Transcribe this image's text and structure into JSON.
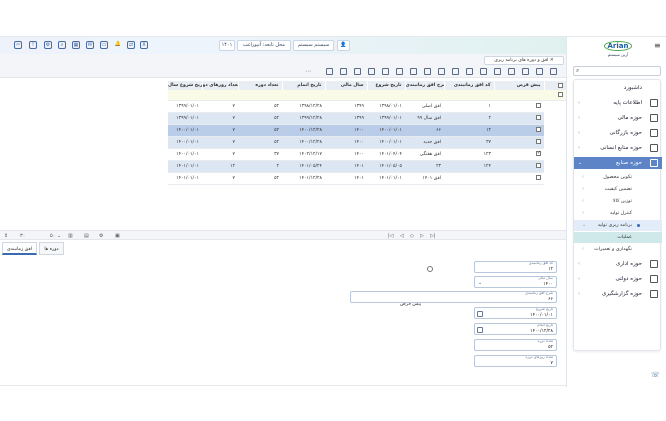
{
  "app": {
    "window_pill_left": "۱۴۰۱",
    "window_pill_mid": "محل تابعه: آتپوراغب",
    "window_pill_right": "سیستم سیستم"
  },
  "sidebar": {
    "logo_main": "Arian",
    "logo_sub": "آرین سیستم",
    "search_placeholder": "",
    "items": [
      {
        "label": "داشبورد"
      },
      {
        "label": "اطلاعات پایه"
      },
      {
        "label": "حوزه مالی"
      },
      {
        "label": "حوزه بازرگانی"
      },
      {
        "label": "حوزه منابع انسانی"
      },
      {
        "label": "حوزه صنایع"
      }
    ],
    "subitems": [
      {
        "label": "تکوین محصول"
      },
      {
        "label": "تضمین کیفیت"
      },
      {
        "label": "توزین کالا"
      },
      {
        "label": "کنترل تولید"
      },
      {
        "label": "برنامه ریزی تولید"
      },
      {
        "label": "عملیات"
      },
      {
        "label": "نگهداری و تعمیرات"
      }
    ],
    "items2": [
      {
        "label": "حوزه اداری"
      },
      {
        "label": "حوزه دولتی"
      },
      {
        "label": "حوزه گزارشگیری"
      }
    ]
  },
  "toolbar": {
    "tab_label": "افق و دوره های برنامه ریزی"
  },
  "grid": {
    "columns": [
      "پیش فرض",
      "کد افق زمانبندی",
      "شرح افق زمانبندی",
      "تاریخ شروع",
      "سال مالی",
      "تاریخ اتمام",
      "تعداد دوره",
      "تعداد روزهای دو...",
      "تاریخ شروع سال..."
    ],
    "rows": [
      [
        "",
        "۱",
        "افق اصلی",
        "۱۳۹۸/۰۱/۰۱",
        "۱۳۹۹",
        "۱۳۹۸/۱۲/۲۸",
        "۵۲",
        "۷",
        "۱۳۹۹/۰۱/۰۱"
      ],
      [
        "",
        "۲",
        "افق سال ۹۹",
        "۱۳۹۹/۰۱/۰۱",
        "۱۳۹۹",
        "۱۳۹۹/۱۲/۲۸",
        "۵۲",
        "۷",
        "۱۳۹۹/۰۱/۰۱"
      ],
      [
        "",
        "۱۲",
        "۶۶",
        "۱۴۰۰/۰۱/۰۱",
        "۱۴۰۰",
        "۱۴۰۰/۱۲/۲۸",
        "۵۲",
        "۷",
        "۱۴۰۰/۰۱/۰۱"
      ],
      [
        "",
        "۳۷",
        "افق جدید",
        "۱۴۰۰/۰۱/۰۱",
        "۱۴۰۰",
        "۱۴۰۰/۱۲/۲۸",
        "۵۲",
        "۷",
        "۱۴۰۰/۰۱/۰۱"
      ],
      [
        "✓",
        "۱۲۳",
        "افق هفتگی",
        "۱۴۰۱/۰۴/۰۴",
        "۱۴۰۰",
        "۱۴۰۲/۱۲/۱۷",
        "۳۷",
        "۷",
        "۱۴۰۰/۰۱/۰۱"
      ],
      [
        "",
        "۱۲۴",
        "۲۳",
        "۱۴۰۱/۰۵/۰۵",
        "۱۴۰۱",
        "۱۴۰۱/۰۵/۲۴",
        "۲",
        "۱۲",
        "۱۴۰۱/۰۱/۰۱"
      ],
      [
        "",
        "",
        "افق ۱۴۰۱",
        "۱۴۰۱/۰۱/۰۱",
        "۱۴۰۱",
        "۱۴۰۱/۱۲/۲۸",
        "۵۲",
        "۷",
        "۱۴۰۱/۰۱/۰۱"
      ]
    ]
  },
  "pager": {
    "page_size": "۳۰",
    "page_label": "۵۰"
  },
  "bottom_tabs": [
    "افق زمانبندی",
    "دوره ها"
  ],
  "form": {
    "radio_label": "پیش فرض",
    "code": {
      "label": "کد افق زمانبندی",
      "value": "۱۲"
    },
    "year": {
      "label": "سال مالی",
      "value": "۱۴۰۰"
    },
    "desc": {
      "label": "شرح افق زمانبندی",
      "value": "۶۶"
    },
    "start": {
      "label": "تاریخ شروع",
      "value": "۱۴۰۰/۰۱/۰۱"
    },
    "end": {
      "label": "تاریخ اتمام",
      "value": "۱۴۰۰/۱۲/۲۸"
    },
    "periods": {
      "label": "تعداد دوره",
      "value": "۵۲"
    },
    "days": {
      "label": "تعداد روزهای دوره",
      "value": "۷"
    }
  }
}
